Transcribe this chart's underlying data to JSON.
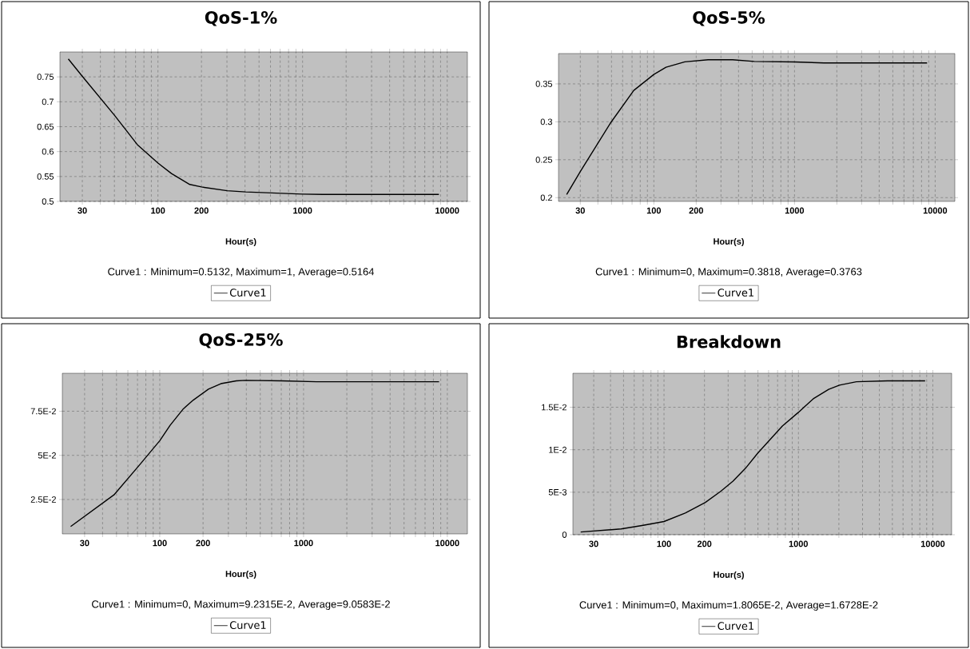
{
  "chart_data": [
    {
      "type": "line",
      "title": "QoS-1%",
      "xlabel": "Hour(s)",
      "log": "x",
      "grid": true,
      "legend": "bottom",
      "annotations": [
        "Curve1 : Minimum=0.5132,  Maximum=1,  Average=0.5164"
      ],
      "x": [
        24,
        30,
        50,
        72,
        100,
        124,
        166,
        200,
        301,
        404,
        1000,
        1370,
        8760
      ],
      "series": [
        {
          "name": "Curve1",
          "color": "#000000",
          "values": [
            0.786,
            0.751,
            0.673,
            0.614,
            0.577,
            0.556,
            0.534,
            0.529,
            0.5215,
            0.519,
            0.5147,
            0.514,
            0.514
          ]
        }
      ],
      "xlim": [
        21,
        13800
      ],
      "ylim": [
        0.5,
        0.8
      ],
      "xticks": [
        30,
        {
          "value": 40,
          "label": null
        },
        {
          "value": 50,
          "label": null
        },
        {
          "value": 60,
          "label": null
        },
        {
          "value": 70,
          "label": null
        },
        {
          "value": 80,
          "label": null
        },
        {
          "value": 90,
          "label": null
        },
        100,
        200,
        {
          "value": 300,
          "label": null
        },
        {
          "value": 400,
          "label": null
        },
        {
          "value": 500,
          "label": null
        },
        {
          "value": 600,
          "label": null
        },
        {
          "value": 700,
          "label": null
        },
        {
          "value": 800,
          "label": null
        },
        {
          "value": 900,
          "label": null
        },
        1000,
        {
          "value": 2000,
          "label": null
        },
        {
          "value": 3000,
          "label": null
        },
        {
          "value": 4000,
          "label": null
        },
        {
          "value": 5000,
          "label": null
        },
        {
          "value": 6000,
          "label": null
        },
        {
          "value": 7000,
          "label": null
        },
        {
          "value": 8000,
          "label": null
        },
        {
          "value": 9000,
          "label": null
        },
        10000
      ],
      "yticks": [
        0.5,
        0.55,
        0.6,
        0.65,
        0.7,
        0.75
      ]
    },
    {
      "type": "line",
      "title": "QoS-5%",
      "xlabel": "Hour(s)",
      "log": "x",
      "grid": true,
      "legend": "bottom",
      "annotations": [
        "Curve1 : Minimum=0,  Maximum=0.3818,  Average=0.3763"
      ],
      "x": [
        24,
        30,
        49,
        72,
        100,
        122,
        166,
        243,
        363,
        518,
        1000,
        1620,
        8760
      ],
      "series": [
        {
          "name": "Curve1",
          "color": "#000000",
          "values": [
            0.204,
            0.2344,
            0.298,
            0.3414,
            0.3625,
            0.372,
            0.379,
            0.3818,
            0.3818,
            0.3796,
            0.379,
            0.3776,
            0.3776
          ]
        }
      ],
      "xlim": [
        21,
        13800
      ],
      "ylim": [
        0.195,
        0.39
      ],
      "xticks": [
        30,
        {
          "value": 40,
          "label": null
        },
        {
          "value": 50,
          "label": null
        },
        {
          "value": 60,
          "label": null
        },
        {
          "value": 70,
          "label": null
        },
        {
          "value": 80,
          "label": null
        },
        {
          "value": 90,
          "label": null
        },
        100,
        200,
        {
          "value": 300,
          "label": null
        },
        {
          "value": 400,
          "label": null
        },
        {
          "value": 500,
          "label": null
        },
        {
          "value": 600,
          "label": null
        },
        {
          "value": 700,
          "label": null
        },
        {
          "value": 800,
          "label": null
        },
        {
          "value": 900,
          "label": null
        },
        1000,
        {
          "value": 2000,
          "label": null
        },
        {
          "value": 3000,
          "label": null
        },
        {
          "value": 4000,
          "label": null
        },
        {
          "value": 5000,
          "label": null
        },
        {
          "value": 6000,
          "label": null
        },
        {
          "value": 7000,
          "label": null
        },
        {
          "value": 8000,
          "label": null
        },
        {
          "value": 9000,
          "label": null
        },
        10000
      ],
      "yticks": [
        0.2,
        0.25,
        0.3,
        0.35
      ]
    },
    {
      "type": "line",
      "title": "QoS-25%",
      "xlabel": "Hour(s)",
      "log": "x",
      "grid": true,
      "legend": "bottom",
      "annotations": [
        "Curve1 : Minimum=0,  Maximum=9.2315E-2,  Average=9.0583E-2"
      ],
      "x": [
        24,
        48,
        72,
        100,
        118,
        146,
        171,
        218,
        266,
        341,
        395,
        708,
        1230,
        8760
      ],
      "series": [
        {
          "name": "Curve1",
          "color": "#000000",
          "values": [
            0.0097,
            0.0276,
            0.0444,
            0.0583,
            0.067,
            0.0764,
            0.0813,
            0.0875,
            0.0906,
            0.0922,
            0.0925,
            0.0922,
            0.0917,
            0.0917
          ]
        }
      ],
      "xlim": [
        21,
        13800
      ],
      "ylim": [
        0.0055,
        0.0965
      ],
      "xticks": [
        30,
        {
          "value": 40,
          "label": null
        },
        {
          "value": 50,
          "label": null
        },
        {
          "value": 60,
          "label": null
        },
        {
          "value": 70,
          "label": null
        },
        {
          "value": 80,
          "label": null
        },
        {
          "value": 90,
          "label": null
        },
        100,
        200,
        {
          "value": 300,
          "label": null
        },
        {
          "value": 400,
          "label": null
        },
        {
          "value": 500,
          "label": null
        },
        {
          "value": 600,
          "label": null
        },
        {
          "value": 700,
          "label": null
        },
        {
          "value": 800,
          "label": null
        },
        {
          "value": 900,
          "label": null
        },
        1000,
        {
          "value": 2000,
          "label": null
        },
        {
          "value": 3000,
          "label": null
        },
        {
          "value": 4000,
          "label": null
        },
        {
          "value": 5000,
          "label": null
        },
        {
          "value": 6000,
          "label": null
        },
        {
          "value": 7000,
          "label": null
        },
        {
          "value": 8000,
          "label": null
        },
        {
          "value": 9000,
          "label": null
        },
        10000
      ],
      "yticks": [
        {
          "value": 0.025,
          "label": "2.5E-2"
        },
        {
          "value": 0.05,
          "label": "5E-2"
        },
        {
          "value": 0.075,
          "label": "7.5E-2"
        }
      ]
    },
    {
      "type": "line",
      "title": "Breakdown",
      "xlabel": "Hour(s)",
      "log": "x",
      "grid": true,
      "legend": "bottom",
      "annotations": [
        "Curve1 : Minimum=0,  Maximum=1.8065E-2,  Average=1.6728E-2"
      ],
      "x": [
        24,
        48,
        70,
        100,
        144,
        203,
        264,
        326,
        403,
        498,
        615,
        760,
        1000,
        1290,
        1680,
        2020,
        2700,
        4600,
        8760
      ],
      "series": [
        {
          "name": "Curve1",
          "color": "#000000",
          "values": [
            0.00032,
            0.00068,
            0.0011,
            0.00155,
            0.00255,
            0.0038,
            0.0051,
            0.0063,
            0.0078,
            0.0096,
            0.0112,
            0.0128,
            0.0144,
            0.016,
            0.0171,
            0.0176,
            0.018,
            0.0181,
            0.0181
          ]
        }
      ],
      "xlim": [
        21,
        13800
      ],
      "ylim": [
        0,
        0.019
      ],
      "xticks": [
        30,
        {
          "value": 40,
          "label": null
        },
        {
          "value": 50,
          "label": null
        },
        {
          "value": 60,
          "label": null
        },
        {
          "value": 70,
          "label": null
        },
        {
          "value": 80,
          "label": null
        },
        {
          "value": 90,
          "label": null
        },
        100,
        200,
        {
          "value": 300,
          "label": null
        },
        {
          "value": 400,
          "label": null
        },
        {
          "value": 500,
          "label": null
        },
        {
          "value": 600,
          "label": null
        },
        {
          "value": 700,
          "label": null
        },
        {
          "value": 800,
          "label": null
        },
        {
          "value": 900,
          "label": null
        },
        1000,
        {
          "value": 2000,
          "label": null
        },
        {
          "value": 3000,
          "label": null
        },
        {
          "value": 4000,
          "label": null
        },
        {
          "value": 5000,
          "label": null
        },
        {
          "value": 6000,
          "label": null
        },
        {
          "value": 7000,
          "label": null
        },
        {
          "value": 8000,
          "label": null
        },
        {
          "value": 9000,
          "label": null
        },
        10000
      ],
      "yticks": [
        0,
        {
          "value": 0.005,
          "label": "5E-3"
        },
        {
          "value": 0.01,
          "label": "1E-2"
        },
        {
          "value": 0.015,
          "label": "1.5E-2"
        }
      ]
    }
  ]
}
